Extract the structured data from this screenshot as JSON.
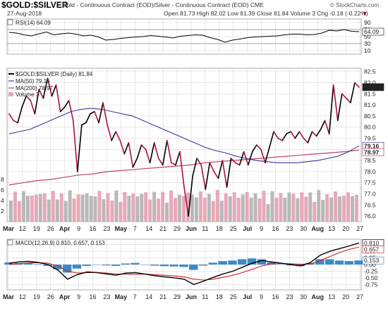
{
  "header": {
    "symbol": "$GOLD:$SILVER",
    "description": "Gold - Continuous Contract (EOD)/Silver - Continuous Contract (EOD) CME",
    "date": "27-Aug-2018",
    "ohlc": "Open 81.73  High 82.02  Low 81.39  Close 81.84  Volume 3  Chg -0.18 (-0.22%)",
    "chg_marker": "▼",
    "brand": "© StockCharts.com"
  },
  "colors": {
    "price_up": "#000000",
    "price_down": "#b0103a",
    "ma50": "#3a3a9a",
    "ma200": "#c04060",
    "vol_up": "#b8b8b8",
    "vol_down": "#e8a8b8",
    "macd": "#000000",
    "signal": "#cc2020",
    "hist": "#3a8ac8",
    "rsi": "#000000",
    "grid": "#d8d8d8"
  },
  "chart_data": [
    {
      "type": "line",
      "panel": "RSI",
      "legend": "RSI(14) 64.09",
      "value_label": "64.09",
      "yticks": [
        10,
        30,
        50,
        70,
        90
      ],
      "ylim": [
        0,
        100
      ],
      "reference_lines": [
        30,
        70
      ],
      "series": [
        {
          "name": "RSI(14)",
          "values": [
            62,
            60,
            55,
            52,
            58,
            63,
            55,
            58,
            60,
            57,
            52,
            54,
            49,
            40,
            42,
            45,
            47,
            49,
            50,
            53,
            51,
            49,
            46,
            51,
            53,
            55,
            54,
            47,
            42,
            34,
            40,
            43,
            47,
            49,
            50,
            51,
            52,
            55,
            57,
            57,
            55,
            56,
            60,
            68,
            66,
            70,
            65,
            64
          ]
        }
      ]
    },
    {
      "type": "line",
      "panel": "Price",
      "legend": [
        "$GOLD:$SILVER (Daily) 81.84",
        "MA(50) 79.16",
        "MA(200) 78.97",
        "Volume 3"
      ],
      "x_labels": [
        "Mar",
        "12",
        "19",
        "26",
        "Apr",
        "9",
        "16",
        "23",
        "May",
        "7",
        "14",
        "21",
        "29",
        "Jun",
        "11",
        "18",
        "25",
        "Jul",
        "9",
        "16",
        "23",
        "30",
        "Aug",
        "13",
        "20",
        "27"
      ],
      "yticks": [
        76.0,
        76.5,
        77.0,
        77.5,
        78.0,
        78.5,
        79.0,
        79.5,
        80.0,
        80.5,
        81.0,
        81.5,
        82.0,
        82.5
      ],
      "ylim": [
        75.75,
        82.65
      ],
      "volume_ticks": [
        2,
        4,
        6,
        8
      ],
      "labels": {
        "close": "81.84",
        "ma50": "79.16",
        "ma200": "78.97"
      },
      "series": [
        {
          "name": "$GOLD:$SILVER (Daily)",
          "values": [
            80.6,
            80.3,
            80.2,
            80.9,
            81.4,
            81.2,
            80.6,
            81.7,
            81.3,
            82.2,
            81.4,
            81.9,
            80.7,
            80.9,
            81.2,
            80.3,
            78.0,
            80.1,
            80.2,
            80.6,
            80.7,
            80.2,
            81.1,
            80.1,
            79.4,
            79.8,
            79.4,
            78.8,
            79.3,
            78.2,
            78.6,
            79.2,
            79.0,
            78.4,
            79.3,
            78.6,
            78.3,
            79.4,
            78.4,
            78.3,
            78.9,
            77.3,
            76.0,
            77.8,
            78.6,
            78.3,
            77.2,
            78.4,
            78.0,
            77.7,
            78.5,
            77.3,
            78.6,
            78.4,
            78.3,
            78.9,
            78.3,
            78.9,
            79.2,
            79.0,
            78.4,
            79.1,
            79.8,
            79.5,
            79.4,
            79.7,
            79.8,
            79.5,
            79.8,
            79.5,
            79.3,
            79.8,
            79.6,
            79.9,
            80.3,
            79.7,
            81.9,
            80.3,
            81.5,
            81.3,
            81.1,
            82.0,
            81.8
          ]
        },
        {
          "name": "MA(50)",
          "values": [
            79.7,
            79.8,
            79.9,
            80.1,
            80.3,
            80.5,
            80.7,
            80.8,
            80.85,
            80.8,
            80.7,
            80.6,
            80.5,
            80.3,
            80.1,
            79.9,
            79.7,
            79.5,
            79.3,
            79.1,
            78.95,
            78.85,
            78.7,
            78.6,
            78.5,
            78.45,
            78.4,
            78.4,
            78.4,
            78.45,
            78.5,
            78.6,
            78.7,
            78.9,
            79.16
          ]
        },
        {
          "name": "MA(200)",
          "values": [
            77.4,
            77.5,
            77.6,
            77.65,
            77.75,
            77.85,
            77.9,
            78.0,
            78.05,
            78.1,
            78.15,
            78.2,
            78.25,
            78.3,
            78.4,
            78.45,
            78.5,
            78.55,
            78.6,
            78.65,
            78.7,
            78.75,
            78.8,
            78.85,
            78.9,
            78.97
          ]
        }
      ]
    },
    {
      "type": "line",
      "panel": "MACD",
      "legend": [
        "MACD(12,26,9) 0.810, 0.657, 0.153"
      ],
      "yticks": [
        -0.75,
        -0.5,
        -0.25,
        0.0,
        0.25,
        0.5,
        0.75
      ],
      "ylim": [
        -0.95,
        0.95
      ],
      "labels": {
        "macd": "0.810",
        "signal": "0.657",
        "hist": "0.153"
      },
      "series": [
        {
          "name": "MACD",
          "values": [
            0.05,
            0.1,
            0.12,
            0.08,
            0.0,
            -0.2,
            -0.55,
            -0.38,
            -0.28,
            -0.3,
            -0.35,
            -0.4,
            -0.32,
            -0.3,
            -0.36,
            -0.42,
            -0.46,
            -0.5,
            -0.55,
            -0.75,
            -0.62,
            -0.48,
            -0.35,
            -0.25,
            -0.1,
            0.05,
            0.15,
            0.1,
            0.05,
            0.0,
            -0.05,
            0.08,
            0.35,
            0.5,
            0.6,
            0.7,
            0.81
          ]
        },
        {
          "name": "Signal",
          "values": [
            0.0,
            0.03,
            0.06,
            0.07,
            0.05,
            -0.05,
            -0.25,
            -0.32,
            -0.3,
            -0.3,
            -0.32,
            -0.35,
            -0.36,
            -0.36,
            -0.36,
            -0.38,
            -0.4,
            -0.43,
            -0.46,
            -0.55,
            -0.58,
            -0.55,
            -0.48,
            -0.4,
            -0.3,
            -0.18,
            -0.05,
            0.02,
            0.04,
            0.03,
            0.01,
            0.02,
            0.15,
            0.3,
            0.45,
            0.57,
            0.657
          ]
        },
        {
          "name": "Histogram",
          "values": [
            0.08,
            0.06,
            0.05,
            0.02,
            -0.05,
            -0.18,
            -0.3,
            -0.15,
            -0.05,
            0.0,
            -0.03,
            -0.05,
            0.04,
            0.06,
            0.0,
            -0.04,
            -0.06,
            -0.07,
            -0.09,
            -0.2,
            -0.04,
            0.07,
            0.13,
            0.15,
            0.2,
            0.23,
            0.2,
            0.08,
            0.01,
            -0.03,
            -0.06,
            0.06,
            0.2,
            0.2,
            0.15,
            0.13,
            0.153
          ]
        }
      ]
    }
  ]
}
